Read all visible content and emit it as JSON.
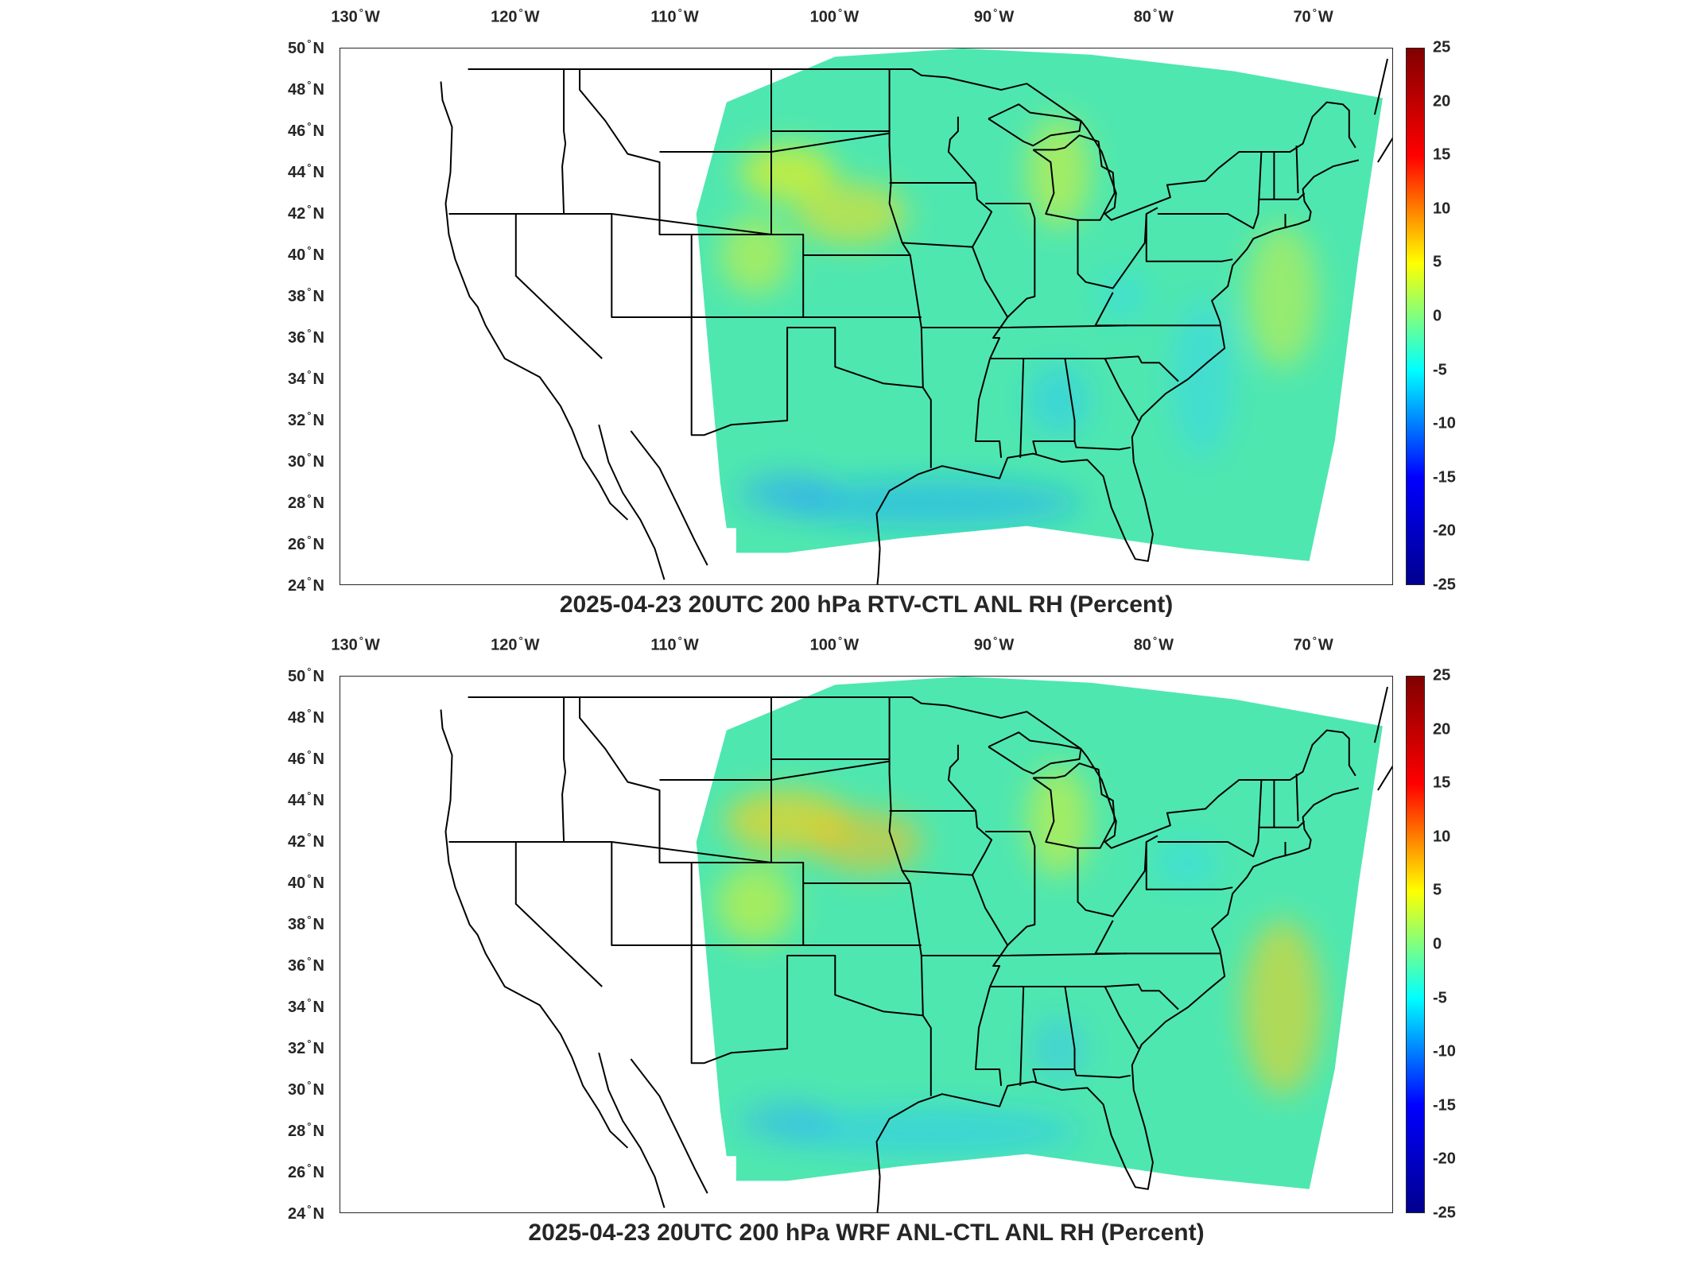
{
  "lon_ticks": [
    {
      "value": "130",
      "hemi": "W",
      "deg": -130
    },
    {
      "value": "120",
      "hemi": "W",
      "deg": -120
    },
    {
      "value": "110",
      "hemi": "W",
      "deg": -110
    },
    {
      "value": "100",
      "hemi": "W",
      "deg": -100
    },
    {
      "value": "90",
      "hemi": "W",
      "deg": -90
    },
    {
      "value": "80",
      "hemi": "W",
      "deg": -80
    },
    {
      "value": "70",
      "hemi": "W",
      "deg": -70
    }
  ],
  "lat_ticks": [
    {
      "value": "50",
      "hemi": "N",
      "deg": 50
    },
    {
      "value": "48",
      "hemi": "N",
      "deg": 48
    },
    {
      "value": "46",
      "hemi": "N",
      "deg": 46
    },
    {
      "value": "44",
      "hemi": "N",
      "deg": 44
    },
    {
      "value": "42",
      "hemi": "N",
      "deg": 42
    },
    {
      "value": "40",
      "hemi": "N",
      "deg": 40
    },
    {
      "value": "38",
      "hemi": "N",
      "deg": 38
    },
    {
      "value": "36",
      "hemi": "N",
      "deg": 36
    },
    {
      "value": "34",
      "hemi": "N",
      "deg": 34
    },
    {
      "value": "32",
      "hemi": "N",
      "deg": 32
    },
    {
      "value": "30",
      "hemi": "N",
      "deg": 30
    },
    {
      "value": "28",
      "hemi": "N",
      "deg": 28
    },
    {
      "value": "26",
      "hemi": "N",
      "deg": 26
    },
    {
      "value": "24",
      "hemi": "N",
      "deg": 24
    }
  ],
  "degree_symbol": "°",
  "colorbar": {
    "min": -25,
    "max": 25,
    "ticks": [
      "25",
      "20",
      "15",
      "10",
      "5",
      "0",
      "-5",
      "-10",
      "-15",
      "-20",
      "-25"
    ],
    "tick_values": [
      25,
      20,
      15,
      10,
      5,
      0,
      -5,
      -10,
      -15,
      -20,
      -25
    ],
    "colors": [
      "#00008f",
      "#0000ff",
      "#00ffff",
      "#ffff00",
      "#ff0000",
      "#800000"
    ]
  },
  "panels": [
    {
      "title": "2025-04-23 20UTC 200 hPa RTV-CTL ANL RH (Percent)"
    },
    {
      "title": "2025-04-23 20UTC 200 hPa WRF ANL-CTL ANL RH (Percent)"
    }
  ],
  "map": {
    "extent": {
      "lon_min": -131,
      "lon_max": -65,
      "lat_min": 24,
      "lat_max": 50
    },
    "field_background": "#4fe7b0",
    "land_outline_color": "#000000"
  }
}
